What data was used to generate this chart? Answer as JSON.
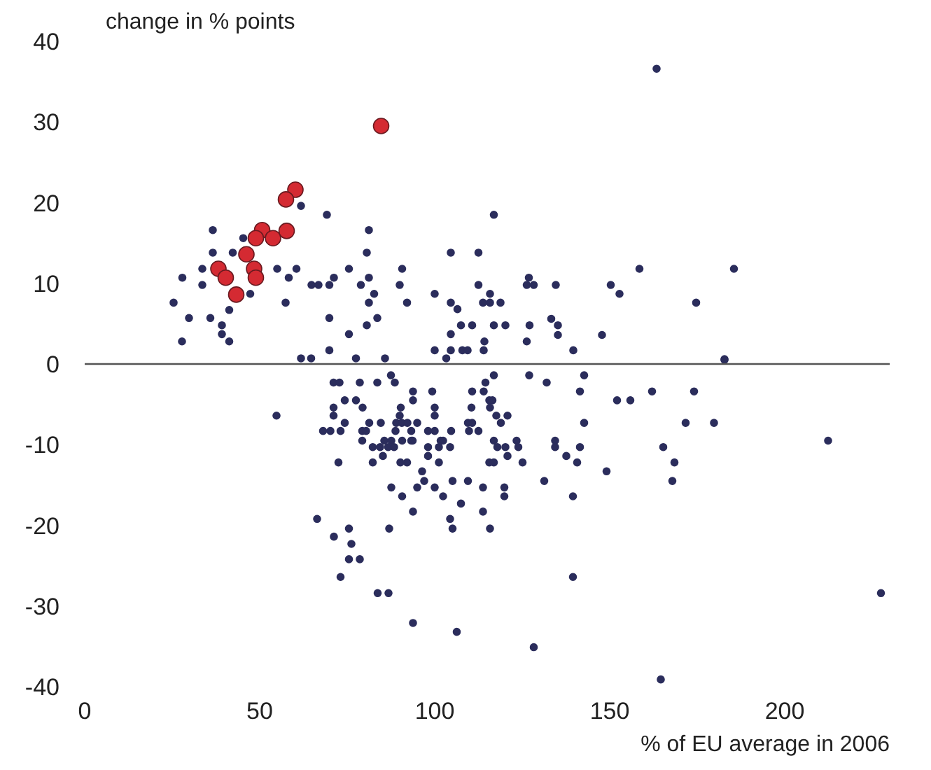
{
  "chart_data": {
    "type": "scatter",
    "xlabel": "% of EU average in 2006",
    "ylabel": "change in % points",
    "xlim": [
      0,
      230
    ],
    "ylim": [
      -40,
      40
    ],
    "xticks": [
      0,
      50,
      100,
      150,
      200
    ],
    "yticks": [
      -40,
      -30,
      -20,
      -10,
      0,
      10,
      20,
      30,
      40
    ],
    "marker": "circle",
    "ref_lines": [
      {
        "axis": "y",
        "value": 0,
        "color": "#555555"
      }
    ],
    "series": [
      {
        "color": "#2b2d5c",
        "x": [
          61.8,
          69.2,
          36.6,
          45.3,
          81.2,
          36.6,
          42.3,
          80.6,
          104.6,
          33.6,
          55.0,
          60.5,
          75.5,
          90.7,
          27.9,
          58.3,
          71.2,
          81.2,
          33.6,
          64.8,
          66.8,
          69.9,
          78.9,
          90.0,
          47.3,
          82.7,
          100.0,
          25.4,
          57.4,
          81.2,
          92.1,
          104.6,
          41.3,
          29.8,
          35.9,
          69.9,
          83.6,
          39.2,
          80.6,
          39.2,
          75.5,
          104.6,
          27.8,
          41.3,
          69.9,
          100.0,
          104.6,
          61.8,
          64.7,
          77.5,
          85.8,
          103.3,
          116.9,
          112.5,
          158.5,
          185.5,
          112.5,
          126.9,
          126.3,
          128.3,
          134.6,
          150.3,
          152.8,
          115.8,
          106.5,
          113.8,
          115.8,
          118.8,
          174.7,
          107.5,
          110.7,
          116.9,
          120.2,
          127.1,
          133.3,
          135.2,
          135.2,
          147.8,
          126.3,
          114.2,
          107.9,
          109.4,
          114.0,
          139.6,
          182.8,
          163.4,
          54.8,
          71.1,
          72.8,
          78.6,
          83.6,
          88.6,
          87.5,
          74.3,
          77.5,
          71.1,
          79.4,
          71.1,
          74.3,
          68.1,
          70.2,
          73.1,
          79.3,
          80.4,
          79.3,
          81.3,
          84.6,
          89.0,
          90.6,
          92.2,
          95.0,
          82.3,
          84.4,
          86.7,
          88.4,
          85.6,
          87.6,
          90.7,
          93.3,
          85.2,
          72.5,
          82.3,
          90.2,
          92.1,
          90.3,
          90.0,
          93.8,
          93.8,
          99.3,
          100.0,
          100.0,
          88.8,
          93.3,
          98.1,
          100.0,
          93.7,
          98.1,
          101.2,
          104.4,
          101.7,
          102.4,
          98.1,
          101.2,
          104.7,
          109.8,
          112.5,
          109.5,
          110.7,
          110.5,
          110.7,
          114.0,
          114.5,
          116.9,
          115.6,
          116.5,
          115.8,
          117.6,
          120.8,
          118.9,
          116.9,
          117.9,
          120.2,
          120.8,
          123.4,
          123.9,
          115.6,
          116.9,
          125.1,
          127.0,
          132.0,
          134.4,
          134.4,
          137.6,
          96.4,
          97.0,
          87.6,
          95.0,
          100.0,
          105.1,
          109.5,
          113.8,
          119.9,
          90.7,
          102.4,
          119.9,
          107.5,
          93.8,
          113.8,
          66.4,
          104.4,
          75.5,
          87.0,
          105.1,
          115.8,
          131.3,
          71.2,
          76.2,
          75.5,
          78.6,
          73.1,
          83.7,
          86.8,
          93.8,
          106.3,
          128.3,
          182.8,
          142.7,
          141.5,
          152.1,
          155.9,
          162.1,
          174.1,
          142.7,
          171.7,
          179.8,
          141.5,
          140.7,
          149.1,
          165.3,
          168.5,
          167.9,
          139.5,
          212.4,
          139.5,
          227.5,
          164.6
        ],
        "values": [
          19.6,
          18.5,
          16.6,
          15.6,
          16.6,
          13.8,
          13.8,
          13.8,
          13.8,
          11.8,
          11.8,
          11.8,
          11.8,
          11.8,
          10.7,
          10.7,
          10.7,
          10.7,
          9.8,
          9.8,
          9.8,
          9.8,
          9.8,
          9.8,
          8.7,
          8.7,
          8.7,
          7.6,
          7.6,
          7.6,
          7.6,
          7.6,
          6.7,
          5.7,
          5.7,
          5.7,
          5.7,
          4.8,
          4.8,
          3.7,
          3.7,
          3.7,
          2.8,
          2.8,
          1.7,
          1.7,
          1.7,
          0.7,
          0.7,
          0.7,
          0.7,
          0.7,
          18.5,
          13.8,
          11.8,
          11.8,
          9.8,
          10.7,
          9.8,
          9.8,
          9.8,
          9.8,
          8.7,
          8.7,
          6.8,
          7.6,
          7.6,
          7.6,
          7.6,
          4.8,
          4.8,
          4.8,
          4.8,
          4.8,
          5.6,
          4.8,
          3.6,
          3.6,
          2.8,
          2.8,
          1.7,
          1.7,
          1.7,
          1.7,
          0.6,
          36.6,
          -6.4,
          -2.3,
          -2.3,
          -2.3,
          -2.3,
          -2.3,
          -1.4,
          -4.5,
          -4.5,
          -5.4,
          -5.4,
          -6.4,
          -7.3,
          -8.3,
          -8.3,
          -8.3,
          -8.3,
          -8.3,
          -9.5,
          -7.3,
          -7.3,
          -7.3,
          -7.3,
          -7.3,
          -7.3,
          -10.3,
          -10.3,
          -10.3,
          -10.3,
          -9.5,
          -9.5,
          -9.5,
          -9.5,
          -11.4,
          -12.2,
          -12.2,
          -12.2,
          -12.2,
          -5.4,
          -6.4,
          -3.4,
          -4.5,
          -3.4,
          -5.4,
          -6.4,
          -8.3,
          -8.3,
          -8.3,
          -8.3,
          -9.5,
          -10.3,
          -10.3,
          -10.3,
          -9.5,
          -9.5,
          -11.4,
          -12.2,
          -8.3,
          -8.3,
          -8.3,
          -7.3,
          -7.3,
          -5.4,
          -3.4,
          -3.4,
          -2.3,
          -1.4,
          -4.5,
          -4.5,
          -5.4,
          -6.4,
          -6.4,
          -7.3,
          -9.5,
          -10.3,
          -10.3,
          -11.4,
          -9.5,
          -10.3,
          -12.2,
          -12.2,
          -12.2,
          -1.4,
          -2.3,
          -9.5,
          -10.3,
          -11.4,
          -13.3,
          -14.5,
          -15.3,
          -15.3,
          -15.3,
          -14.5,
          -14.5,
          -15.3,
          -15.3,
          -16.4,
          -16.4,
          -16.4,
          -17.3,
          -18.3,
          -18.3,
          -19.2,
          -19.2,
          -20.4,
          -20.4,
          -20.4,
          -20.4,
          -14.5,
          -21.4,
          -22.3,
          -24.2,
          -24.2,
          -26.4,
          -28.4,
          -28.4,
          -32.1,
          -33.2,
          -35.1,
          0.5,
          -1.4,
          -3.4,
          -4.5,
          -4.5,
          -3.4,
          -3.4,
          -7.3,
          -7.3,
          -7.3,
          -10.3,
          -12.2,
          -13.3,
          -10.3,
          -12.2,
          -14.5,
          -16.4,
          -9.5,
          -26.4,
          -28.4,
          -39.1
        ]
      },
      {
        "color": "#d42a32",
        "x": [
          84.7,
          60.2,
          57.5,
          50.7,
          48.9,
          53.8,
          57.7,
          46.2,
          38.2,
          40.3,
          48.4,
          48.9,
          43.3
        ],
        "values": [
          29.5,
          21.6,
          20.4,
          16.6,
          15.6,
          15.6,
          16.5,
          13.6,
          11.8,
          10.7,
          11.8,
          10.7,
          8.6
        ]
      }
    ]
  }
}
